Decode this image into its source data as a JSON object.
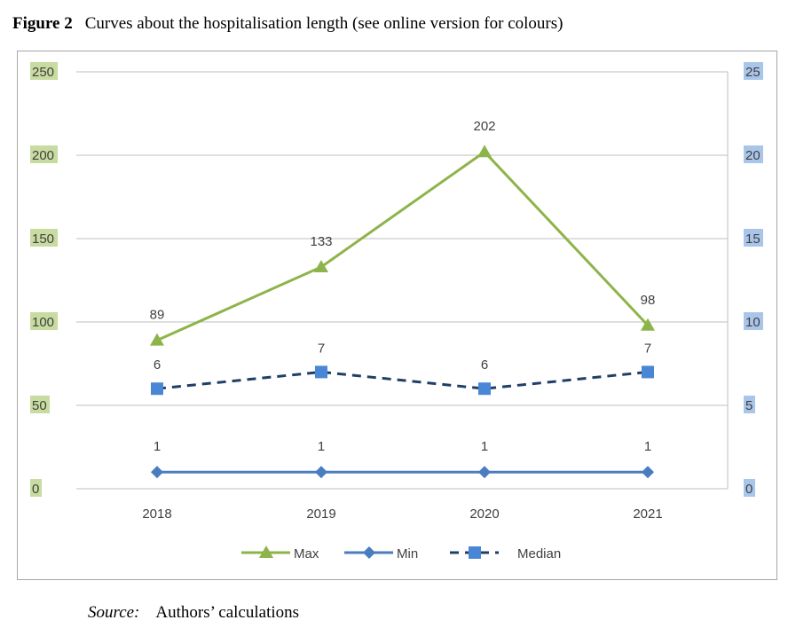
{
  "caption": {
    "label": "Figure 2",
    "text": "Curves about the hospitalisation length (see online version for colours)"
  },
  "source": {
    "label": "Source:",
    "text": "Authors’ calculations"
  },
  "colors": {
    "max": "#8db44a",
    "min": "#4a7dc0",
    "median": "#1f3f66",
    "median_marker": "#4a86d6",
    "left_axis_highlight": "#c8dba0",
    "right_axis_highlight": "#a9c5ea",
    "grid": "#bfbfbf"
  },
  "chart_data": {
    "type": "line",
    "categories": [
      "2018",
      "2019",
      "2020",
      "2021"
    ],
    "y_left": {
      "ticks": [
        "0",
        "50",
        "100",
        "150",
        "200",
        "250"
      ],
      "ylim": [
        0,
        250
      ]
    },
    "y_right": {
      "ticks": [
        "0",
        "5",
        "10",
        "15",
        "20",
        "25"
      ],
      "ylim": [
        0,
        25
      ]
    },
    "series": [
      {
        "name": "Max",
        "values": [
          89,
          133,
          202,
          98
        ],
        "labels": [
          "89",
          "133",
          "202",
          "98"
        ],
        "axis": "left",
        "marker": "triangle",
        "dash": "solid"
      },
      {
        "name": "Min",
        "values": [
          1,
          1,
          1,
          1
        ],
        "labels": [
          "1",
          "1",
          "1",
          "1"
        ],
        "axis": "right",
        "marker": "diamond",
        "dash": "solid"
      },
      {
        "name": "Median",
        "values": [
          6,
          7,
          6,
          7
        ],
        "labels": [
          "6",
          "7",
          "6",
          "7"
        ],
        "axis": "right",
        "marker": "square",
        "dash": "dashed"
      }
    ],
    "legend": {
      "placement": "bottom",
      "entries": [
        "Max",
        "Min",
        "Median"
      ]
    },
    "grid": true
  }
}
